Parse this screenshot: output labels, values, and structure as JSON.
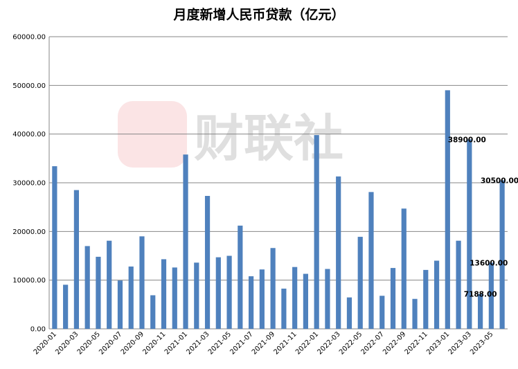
{
  "chart_data": {
    "type": "bar",
    "title": "月度新增人民币贷款（亿元）",
    "watermark": "财联社",
    "categories": [
      "2020-01",
      null,
      "2020-03",
      null,
      "2020-05",
      null,
      "2020-07",
      null,
      "2020-09",
      null,
      "2020-11",
      null,
      "2021-01",
      null,
      "2021-03",
      null,
      "2021-05",
      null,
      "2021-07",
      null,
      "2021-09",
      null,
      "2021-11",
      null,
      "2022-01",
      null,
      "2022-03",
      null,
      "2022-05",
      null,
      "2022-07",
      null,
      "2022-09",
      null,
      "2022-11",
      null,
      "2023-01",
      null,
      "2023-03",
      null,
      "2023-05",
      null
    ],
    "values": [
      33400,
      9057,
      28500,
      17000,
      14800,
      18100,
      9927,
      12800,
      19000,
      6898,
      14300,
      12600,
      35800,
      13600,
      27300,
      14700,
      15000,
      21200,
      10800,
      12200,
      16600,
      8262,
      12700,
      11300,
      39800,
      12300,
      31300,
      6454,
      18900,
      28100,
      6790,
      12500,
      24700,
      6152,
      12100,
      14000,
      49000,
      18100,
      38900,
      7188,
      13600,
      30500
    ],
    "value_labels": [
      null,
      null,
      null,
      null,
      null,
      null,
      null,
      null,
      null,
      null,
      null,
      null,
      null,
      null,
      null,
      null,
      null,
      null,
      null,
      null,
      null,
      null,
      null,
      null,
      null,
      null,
      null,
      null,
      null,
      null,
      null,
      null,
      null,
      null,
      null,
      null,
      null,
      null,
      "38900.00",
      "7188.00",
      "13600.00",
      "30500.00"
    ],
    "color": "#4f81bd",
    "ylim": [
      0,
      60000
    ],
    "yticks": [
      {
        "value": 0,
        "label": "0.00"
      },
      {
        "value": 10000,
        "label": "10000.00"
      },
      {
        "value": 20000,
        "label": "20000.00"
      },
      {
        "value": 30000,
        "label": "30000.00"
      },
      {
        "value": 40000,
        "label": "40000.00"
      },
      {
        "value": 50000,
        "label": "50000.00"
      },
      {
        "value": 60000,
        "label": "60000.00"
      }
    ],
    "grid": true
  }
}
